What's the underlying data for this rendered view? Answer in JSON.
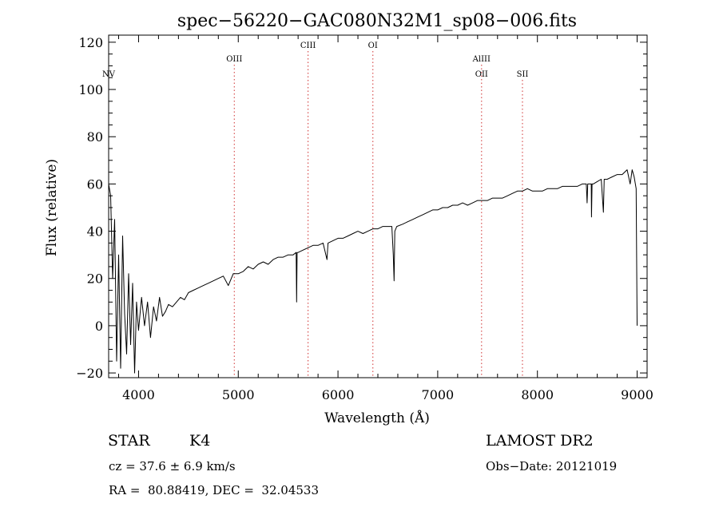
{
  "chart_data": {
    "type": "line",
    "title": "spec−56220−GAC080N32M1_sp08−006.fits",
    "xlabel": "Wavelength (Å)",
    "ylabel": "Flux (relative)",
    "xlim": [
      3700,
      9100
    ],
    "ylim": [
      -22,
      123
    ],
    "xticks": [
      4000,
      5000,
      6000,
      7000,
      8000,
      9000
    ],
    "yticks": [
      -20,
      0,
      20,
      40,
      60,
      80,
      100,
      120
    ],
    "ytick_labels": [
      "−20",
      "0",
      "20",
      "40",
      "60",
      "80",
      "100",
      "120"
    ],
    "grid": false,
    "series": [
      {
        "color": "#000000",
        "x": [
          3700,
          3720,
          3740,
          3760,
          3780,
          3800,
          3820,
          3840,
          3860,
          3880,
          3900,
          3920,
          3940,
          3960,
          3980,
          4000,
          4030,
          4060,
          4090,
          4120,
          4150,
          4180,
          4210,
          4240,
          4270,
          4300,
          4340,
          4380,
          4420,
          4460,
          4500,
          4550,
          4600,
          4650,
          4700,
          4750,
          4800,
          4850,
          4900,
          4950,
          5000,
          5050,
          5100,
          5150,
          5200,
          5250,
          5300,
          5350,
          5400,
          5450,
          5500,
          5550,
          5580,
          5585,
          5590,
          5600,
          5650,
          5700,
          5750,
          5800,
          5850,
          5890,
          5900,
          5950,
          6000,
          6050,
          6100,
          6150,
          6200,
          6250,
          6300,
          6350,
          6400,
          6450,
          6500,
          6540,
          6555,
          6563,
          6570,
          6590,
          6650,
          6700,
          6750,
          6800,
          6850,
          6900,
          6950,
          7000,
          7050,
          7100,
          7150,
          7200,
          7250,
          7300,
          7350,
          7400,
          7450,
          7500,
          7550,
          7600,
          7650,
          7700,
          7750,
          7800,
          7850,
          7900,
          7950,
          8000,
          8050,
          8100,
          8150,
          8200,
          8250,
          8300,
          8350,
          8400,
          8450,
          8490,
          8498,
          8505,
          8520,
          8540,
          8542,
          8548,
          8560,
          8600,
          8640,
          8662,
          8670,
          8700,
          8750,
          8800,
          8850,
          8900,
          8930,
          8950,
          8970,
          8990,
          9000
        ],
        "y": [
          60,
          55,
          20,
          45,
          -15,
          30,
          -18,
          38,
          5,
          -12,
          22,
          -8,
          18,
          -20,
          10,
          -2,
          12,
          0,
          10,
          -5,
          8,
          2,
          12,
          4,
          6,
          9,
          8,
          10,
          12,
          11,
          14,
          15,
          16,
          17,
          18,
          19,
          20,
          21,
          17,
          22,
          22,
          23,
          25,
          24,
          26,
          27,
          26,
          28,
          29,
          29,
          30,
          30,
          31,
          10,
          31,
          31,
          32,
          33,
          34,
          34,
          35,
          28,
          35,
          36,
          37,
          37,
          38,
          39,
          40,
          39,
          40,
          41,
          41,
          42,
          42,
          42,
          30,
          19,
          40,
          42,
          43,
          44,
          45,
          46,
          47,
          48,
          49,
          49,
          50,
          50,
          51,
          51,
          52,
          51,
          52,
          53,
          53,
          53,
          54,
          54,
          54,
          55,
          56,
          57,
          57,
          58,
          57,
          57,
          57,
          58,
          58,
          58,
          59,
          59,
          59,
          59,
          60,
          60,
          52,
          60,
          60,
          60,
          46,
          60,
          60,
          61,
          62,
          48,
          62,
          62,
          63,
          64,
          64,
          66,
          60,
          66,
          63,
          58,
          0
        ]
      }
    ],
    "lines": [
      {
        "label": "NV",
        "x": 3700,
        "label_row": 1,
        "show_line": false
      },
      {
        "label": "OIII",
        "x": 4960,
        "label_row": 0,
        "show_line": true
      },
      {
        "label": "CIII",
        "x": 5700,
        "label_row": -1,
        "show_line": true
      },
      {
        "label": "OI",
        "x": 6350,
        "label_row": -1,
        "show_line": true
      },
      {
        "label": "AlIII",
        "x": 7440,
        "label_row": 0,
        "show_line": true
      },
      {
        "label": "OII",
        "x": 7440,
        "label_row": 1,
        "show_line": false
      },
      {
        "label": "SII",
        "x": 7850,
        "label_row": 1,
        "show_line": true,
        "color": "#d03030"
      }
    ]
  },
  "info": {
    "object_class": "STAR",
    "subclass": "K4",
    "survey": "LAMOST DR2",
    "cz_line": "cz = 37.6 ± 6.9 km/s",
    "obs_date": "Obs−Date: 20121019",
    "coords": "RA =  80.88419, DEC =  32.04533"
  }
}
